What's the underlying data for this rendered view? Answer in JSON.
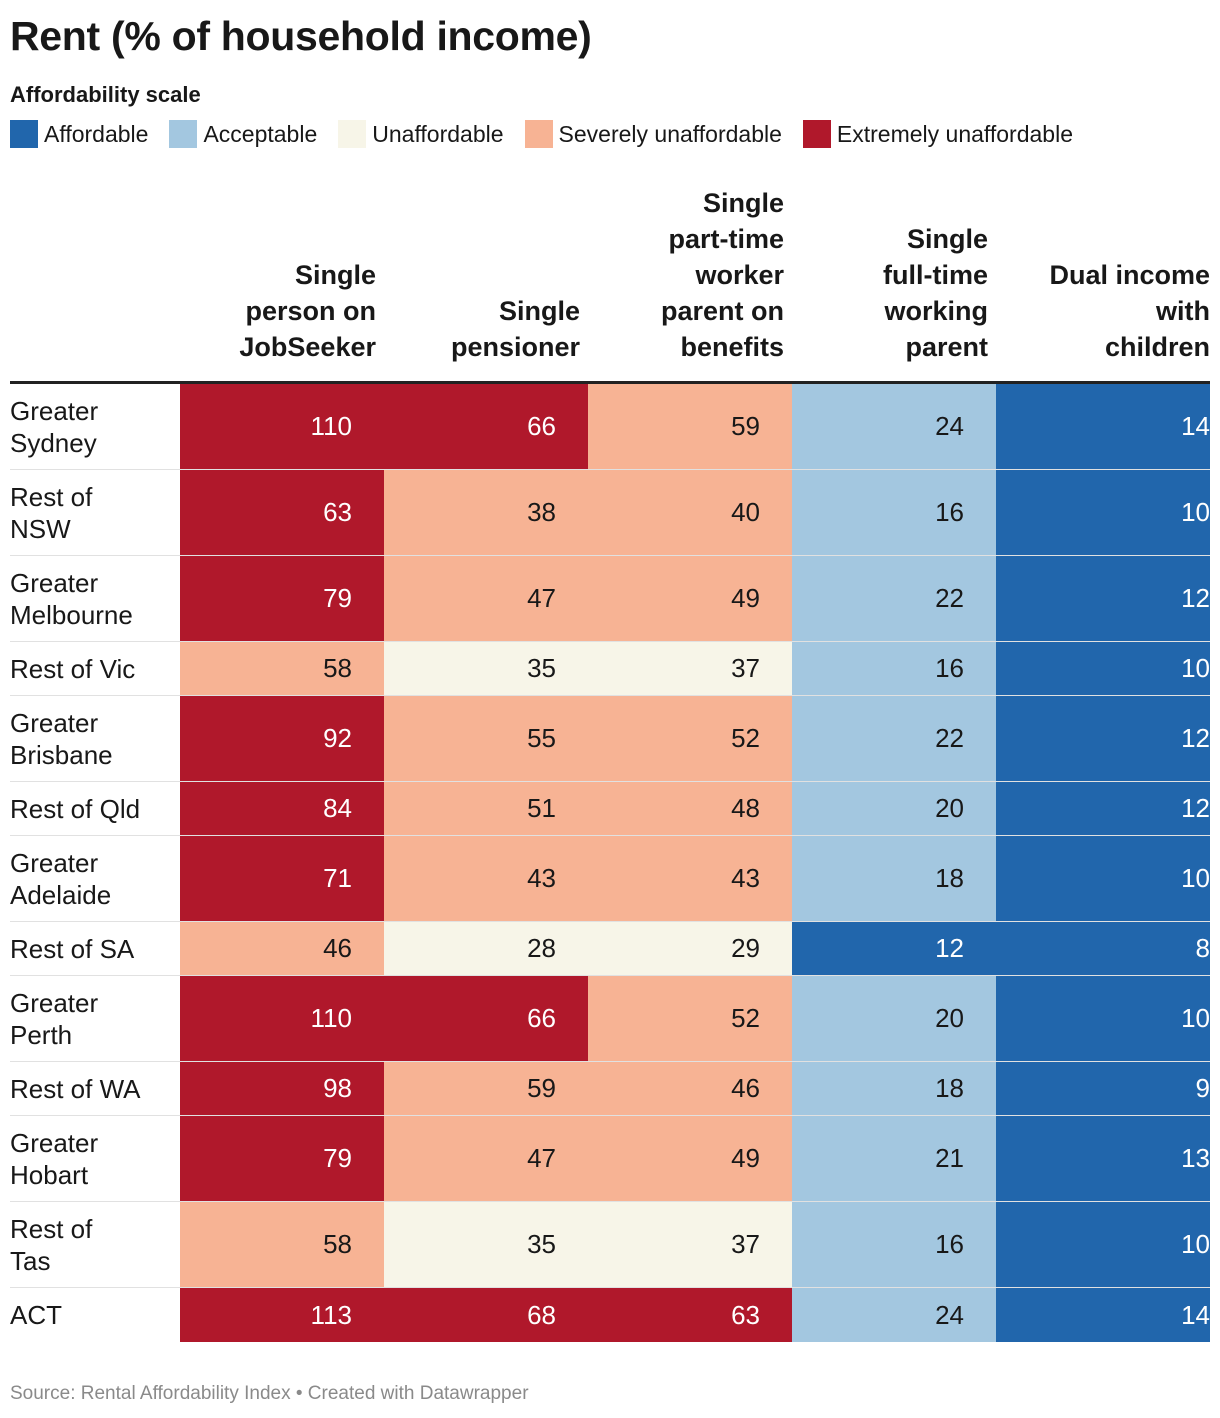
{
  "title": "Rent (% of household income)",
  "legend": {
    "title": "Affordability scale",
    "items": [
      {
        "label": "Affordable",
        "color": "#2166ac"
      },
      {
        "label": "Acceptable",
        "color": "#a3c7e0"
      },
      {
        "label": "Unaffordable",
        "color": "#f7f5e8"
      },
      {
        "label": "Severely unaffordable",
        "color": "#f7b394"
      },
      {
        "label": "Extremely unaffordable",
        "color": "#b0182b"
      }
    ]
  },
  "source": "Source: Rental Affordability Index • Created with Datawrapper",
  "chart_data": {
    "type": "table",
    "title": "Rent (% of household income)",
    "columns": [
      "Single person on JobSeeker",
      "Single pensioner",
      "Single part-time worker parent on benefits",
      "Single full-time working parent",
      "Dual income with children"
    ],
    "column_lines": [
      [
        "Single",
        "person on",
        "JobSeeker"
      ],
      [
        "Single",
        "pensioner"
      ],
      [
        "Single",
        "part-time",
        "worker",
        "parent on",
        "benefits"
      ],
      [
        "Single",
        "full-time",
        "working",
        "parent"
      ],
      [
        "Dual income",
        "with",
        "children"
      ]
    ],
    "rows": [
      {
        "label": "Greater Sydney",
        "label_lines": [
          "Greater",
          "Sydney"
        ],
        "values": [
          110,
          66,
          59,
          24,
          14
        ],
        "categories": [
          "Extremely unaffordable",
          "Extremely unaffordable",
          "Severely unaffordable",
          "Acceptable",
          "Affordable"
        ]
      },
      {
        "label": "Rest of NSW",
        "label_lines": [
          "Rest of",
          "NSW"
        ],
        "values": [
          63,
          38,
          40,
          16,
          10
        ],
        "categories": [
          "Extremely unaffordable",
          "Severely unaffordable",
          "Severely unaffordable",
          "Acceptable",
          "Affordable"
        ]
      },
      {
        "label": "Greater Melbourne",
        "label_lines": [
          "Greater",
          "Melbourne"
        ],
        "values": [
          79,
          47,
          49,
          22,
          12
        ],
        "categories": [
          "Extremely unaffordable",
          "Severely unaffordable",
          "Severely unaffordable",
          "Acceptable",
          "Affordable"
        ]
      },
      {
        "label": "Rest of Vic",
        "label_lines": [
          "Rest of Vic"
        ],
        "values": [
          58,
          35,
          37,
          16,
          10
        ],
        "categories": [
          "Severely unaffordable",
          "Unaffordable",
          "Unaffordable",
          "Acceptable",
          "Affordable"
        ]
      },
      {
        "label": "Greater Brisbane",
        "label_lines": [
          "Greater",
          "Brisbane"
        ],
        "values": [
          92,
          55,
          52,
          22,
          12
        ],
        "categories": [
          "Extremely unaffordable",
          "Severely unaffordable",
          "Severely unaffordable",
          "Acceptable",
          "Affordable"
        ]
      },
      {
        "label": "Rest of Qld",
        "label_lines": [
          "Rest of Qld"
        ],
        "values": [
          84,
          51,
          48,
          20,
          12
        ],
        "categories": [
          "Extremely unaffordable",
          "Severely unaffordable",
          "Severely unaffordable",
          "Acceptable",
          "Affordable"
        ]
      },
      {
        "label": "Greater Adelaide",
        "label_lines": [
          "Greater",
          "Adelaide"
        ],
        "values": [
          71,
          43,
          43,
          18,
          10
        ],
        "categories": [
          "Extremely unaffordable",
          "Severely unaffordable",
          "Severely unaffordable",
          "Acceptable",
          "Affordable"
        ]
      },
      {
        "label": "Rest of SA",
        "label_lines": [
          "Rest of SA"
        ],
        "values": [
          46,
          28,
          29,
          12,
          8
        ],
        "categories": [
          "Severely unaffordable",
          "Unaffordable",
          "Unaffordable",
          "Affordable",
          "Affordable"
        ]
      },
      {
        "label": "Greater Perth",
        "label_lines": [
          "Greater",
          "Perth"
        ],
        "values": [
          110,
          66,
          52,
          20,
          10
        ],
        "categories": [
          "Extremely unaffordable",
          "Extremely unaffordable",
          "Severely unaffordable",
          "Acceptable",
          "Affordable"
        ]
      },
      {
        "label": "Rest of WA",
        "label_lines": [
          "Rest of WA"
        ],
        "values": [
          98,
          59,
          46,
          18,
          9
        ],
        "categories": [
          "Extremely unaffordable",
          "Severely unaffordable",
          "Severely unaffordable",
          "Acceptable",
          "Affordable"
        ]
      },
      {
        "label": "Greater Hobart",
        "label_lines": [
          "Greater",
          "Hobart"
        ],
        "values": [
          79,
          47,
          49,
          21,
          13
        ],
        "categories": [
          "Extremely unaffordable",
          "Severely unaffordable",
          "Severely unaffordable",
          "Acceptable",
          "Affordable"
        ]
      },
      {
        "label": "Rest of Tas",
        "label_lines": [
          "Rest of",
          "Tas"
        ],
        "values": [
          58,
          35,
          37,
          16,
          10
        ],
        "categories": [
          "Severely unaffordable",
          "Unaffordable",
          "Unaffordable",
          "Acceptable",
          "Affordable"
        ]
      },
      {
        "label": "ACT",
        "label_lines": [
          "ACT"
        ],
        "values": [
          113,
          68,
          63,
          24,
          14
        ],
        "categories": [
          "Extremely unaffordable",
          "Extremely unaffordable",
          "Extremely unaffordable",
          "Acceptable",
          "Affordable"
        ]
      }
    ]
  }
}
